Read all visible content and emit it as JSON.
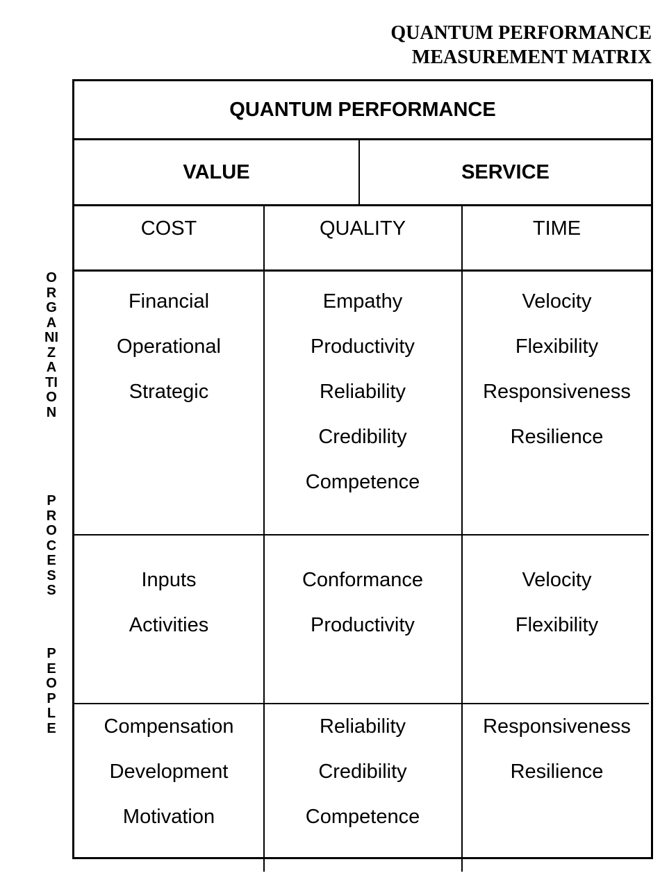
{
  "title": {
    "line1": "QUANTUM PERFORMANCE",
    "line2": "MEASUREMENT MATRIX"
  },
  "row_labels": {
    "organization": "ORGANIZATION",
    "process": "PROCESS",
    "people": "PEOPLE"
  },
  "matrix": {
    "header": "QUANTUM PERFORMANCE",
    "groups": {
      "value": "VALUE",
      "service": "SERVICE"
    },
    "dimensions": {
      "cost": "COST",
      "quality": "QUALITY",
      "time": "TIME"
    },
    "rows": [
      {
        "cost": [
          "Financial",
          "Operational",
          "Strategic"
        ],
        "quality": [
          "Empathy",
          "Productivity",
          "Reliability",
          "Credibility",
          "Competence"
        ],
        "time": [
          "Velocity",
          "Flexibility",
          "Responsiveness",
          "Resilience"
        ]
      },
      {
        "cost": [
          "Inputs",
          "Activities"
        ],
        "quality": [
          "Conformance",
          "Productivity"
        ],
        "time": [
          "Velocity",
          "Flexibility"
        ]
      },
      {
        "cost": [
          "Compensation",
          "Development",
          "Motivation"
        ],
        "quality": [
          "Reliability",
          "Credibility",
          "Competence"
        ],
        "time": [
          "Responsiveness",
          "Resilience"
        ]
      }
    ]
  }
}
